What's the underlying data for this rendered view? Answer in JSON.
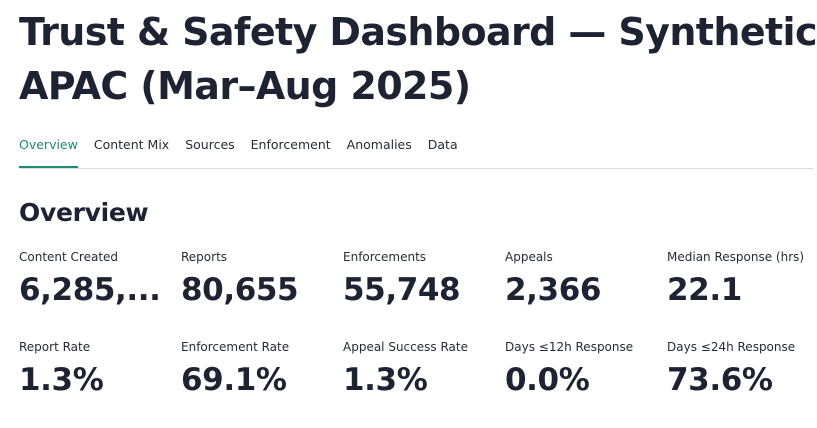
{
  "header": {
    "title_line1": "Trust & Safety Dashboard — Synthetic",
    "title_line2": "APAC (Mar–Aug 2025)"
  },
  "tabs": [
    {
      "label": "Overview",
      "active": true
    },
    {
      "label": "Content Mix",
      "active": false
    },
    {
      "label": "Sources",
      "active": false
    },
    {
      "label": "Enforcement",
      "active": false
    },
    {
      "label": "Anomalies",
      "active": false
    },
    {
      "label": "Data",
      "active": false
    }
  ],
  "section": {
    "title": "Overview"
  },
  "metrics_row1": [
    {
      "label": "Content Created",
      "value": "6,285,..."
    },
    {
      "label": "Reports",
      "value": "80,655"
    },
    {
      "label": "Enforcements",
      "value": "55,748"
    },
    {
      "label": "Appeals",
      "value": "2,366"
    },
    {
      "label": "Median Response (hrs)",
      "value": "22.1"
    }
  ],
  "metrics_row2": [
    {
      "label": "Report Rate",
      "value": "1.3%"
    },
    {
      "label": "Enforcement Rate",
      "value": "69.1%"
    },
    {
      "label": "Appeal Success Rate",
      "value": "1.3%"
    },
    {
      "label": "Days ≤12h Response",
      "value": "0.0%"
    },
    {
      "label": "Days ≤24h Response",
      "value": "73.6%"
    }
  ],
  "colors": {
    "accent": "#1d8a72",
    "text": "#1d2332",
    "divider": "#dcdde2"
  }
}
